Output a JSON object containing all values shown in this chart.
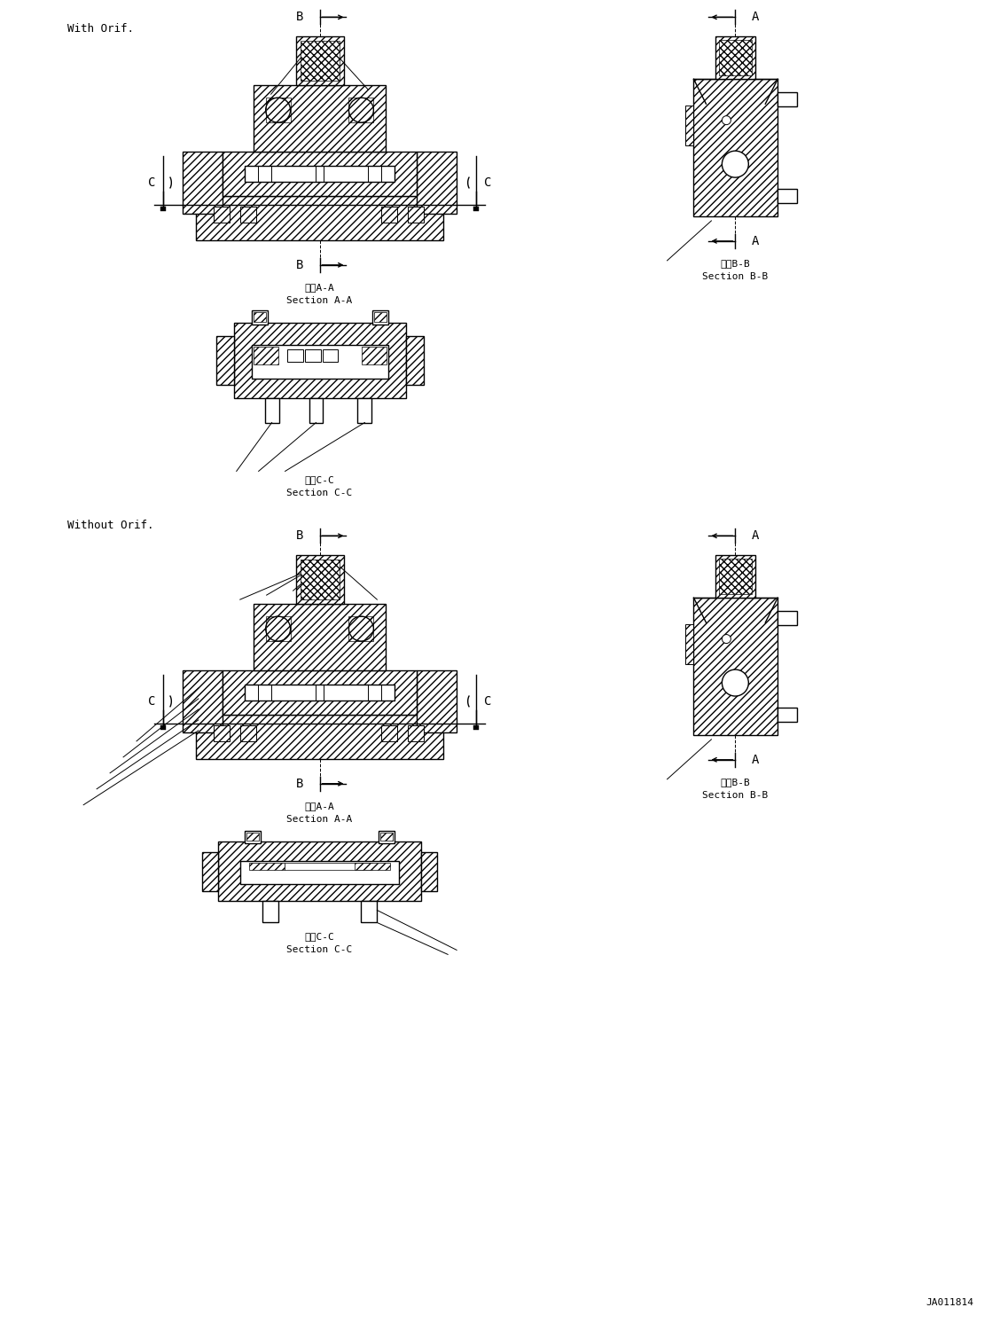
{
  "bg_color": "#ffffff",
  "line_color": "#000000",
  "fig_width": 11.37,
  "fig_height": 14.92,
  "label_with_orif": "With Orif.",
  "label_without_orif": "Without Orif.",
  "section_aa_jp": "断面A-A",
  "section_aa_en": "Section A-A",
  "section_bb_jp": "断面B-B",
  "section_bb_en": "Section B-B",
  "section_cc_jp": "断面C-C",
  "section_cc_en": "Section C-C",
  "diagram_id": "JA011814",
  "font_size_label": 9,
  "font_size_section": 8,
  "font_size_letter": 10,
  "font_size_id": 8
}
